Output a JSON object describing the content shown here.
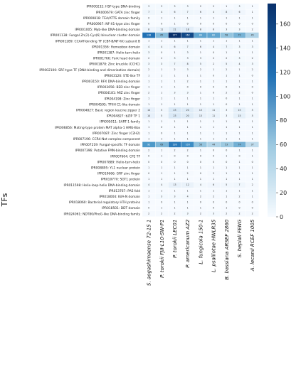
{
  "chart_data": {
    "type": "heatmap",
    "ylabel": "TFs",
    "xlabel": "",
    "columns": [
      "S. aogashimaense 72-15 1",
      "P. torokii FJII-L10-SW-P1",
      "P. torokii LEC01",
      "P. americanum AZ2",
      "L. fungicola 150-1",
      "L. psalliotae HWLR35",
      "B. bassiana ARSEF 2860",
      "S. hepiali FENG",
      "A. lecanii RCEF 1005"
    ],
    "rows": [
      "IPR000232: HSF-type DNA-binding",
      "IPR000679: GATA zinc finger",
      "IPR000818: TEA/ATTS domain family",
      "IPR000967: NF-X1-type zinc finger",
      "IPR001005: Myb-like DNA-binding domain",
      "IPR001138: Fungal Zn(2)-Cys(6) binuclear cluster domain",
      "IPR001289: CCAAT-binding TF (CBF-B/NF-YA) subunit B",
      "IPR001356: Homeobox domain",
      "IPR001387: Helix-turn-helix",
      "IPR001766: Fork head domain",
      "IPR001878: Zinc knuckle (CCHC)",
      "IPR002100: SRF-type TF (DNA-binding and dimerization domain)",
      "IPR003120: STE-like TF",
      "IPR003150: RFX DNA-binding domain",
      "IPR003656: BED zinc finger",
      "IPR004181: MIZ zinc finger",
      "IPR004198: Zinc finger",
      "IPR004595: TFIIH C1-like domain",
      "IPR004827: Basic region leucine zipper 2",
      "IPR004827: bZIP TF 1",
      "IPR005011: SART-1 family",
      "IPR006856: Mating-type protein MAT alpha-1 HMG-Box",
      "IPR007087: Zinc finger (C2H2)",
      "IPR007196: CCR4-Not complex component",
      "IPR007219: Fungal-specific TF domain",
      "IPR007396: Putative FMN-binding domain",
      "IPR007604: CP2 TF",
      "IPR007889: Helix-turn-helix",
      "IPR008895: YL1 nuclear protein",
      "IPR010666: GRF zinc finger",
      "IPR010770: SGT1 protein",
      "IPR011598: Helix-loop-helix DNA-binding domain",
      "IPR013767: PAS fold",
      "IPR018004: KilA-N domain",
      "IPR018060: Bacterial regulatory HTH proteins",
      "IPR018501: DDT domain",
      "IPR024061: NDT80/PhoG-like DNA-binding family"
    ],
    "values": [
      [
        3,
        3,
        3,
        3,
        2,
        2,
        1,
        3,
        1
      ],
      [
        7,
        4,
        6,
        7,
        6,
        4,
        8,
        6,
        1
      ],
      [
        0,
        1,
        1,
        1,
        1,
        1,
        1,
        1,
        1
      ],
      [
        0,
        0,
        1,
        0,
        0,
        0,
        0,
        0,
        0
      ],
      [
        8,
        11,
        21,
        18,
        8,
        6,
        3,
        3,
        2
      ],
      [
        138,
        65,
        177,
        162,
        84,
        82,
        58,
        72,
        45
      ],
      [
        1,
        1,
        1,
        1,
        1,
        1,
        1,
        1,
        1
      ],
      [
        4,
        4,
        6,
        7,
        6,
        4,
        7,
        3,
        3
      ],
      [
        3,
        0,
        1,
        3,
        1,
        0,
        1,
        1,
        1
      ],
      [
        2,
        2,
        3,
        3,
        3,
        2,
        2,
        3,
        2
      ],
      [
        3,
        3,
        7,
        8,
        5,
        2,
        5,
        4,
        3
      ],
      [
        2,
        1,
        2,
        3,
        2,
        1,
        2,
        1,
        2
      ],
      [
        1,
        1,
        1,
        1,
        1,
        0,
        1,
        1,
        0
      ],
      [
        1,
        1,
        1,
        2,
        1,
        1,
        1,
        1,
        1
      ],
      [
        1,
        1,
        1,
        0,
        0,
        0,
        0,
        1,
        0
      ],
      [
        2,
        1,
        3,
        3,
        1,
        0,
        2,
        2,
        0
      ],
      [
        1,
        1,
        1,
        1,
        1,
        1,
        0,
        1,
        1
      ],
      [
        1,
        1,
        1,
        1,
        1,
        1,
        0,
        1,
        1
      ],
      [
        14,
        5,
        23,
        20,
        13,
        11,
        3,
        15,
        5
      ],
      [
        14,
        5,
        23,
        20,
        13,
        11,
        3,
        15,
        5
      ],
      [
        1,
        1,
        1,
        1,
        1,
        1,
        1,
        1,
        1
      ],
      [
        1,
        0,
        1,
        1,
        1,
        1,
        1,
        1,
        1
      ],
      [
        1,
        0,
        1,
        1,
        1,
        1,
        1,
        1,
        1
      ],
      [
        1,
        1,
        1,
        1,
        1,
        1,
        1,
        1,
        1
      ],
      [
        92,
        69,
        126,
        103,
        58,
        44,
        53,
        74,
        37
      ],
      [
        2,
        1,
        2,
        2,
        1,
        0,
        0,
        1,
        1
      ],
      [
        0,
        1,
        0,
        0,
        0,
        0,
        1,
        0,
        1
      ],
      [
        0,
        0,
        0,
        0,
        0,
        0,
        0,
        1,
        0
      ],
      [
        1,
        1,
        1,
        1,
        1,
        1,
        1,
        1,
        1
      ],
      [
        0,
        1,
        1,
        2,
        0,
        2,
        1,
        1,
        1
      ],
      [
        1,
        1,
        1,
        1,
        1,
        1,
        1,
        1,
        1
      ],
      [
        4,
        4,
        13,
        12,
        4,
        6,
        5,
        7,
        2
      ],
      [
        1,
        1,
        1,
        1,
        1,
        1,
        1,
        1,
        1
      ],
      [
        1,
        3,
        3,
        4,
        2,
        2,
        1,
        2,
        1
      ],
      [
        1,
        0,
        1,
        1,
        0,
        0,
        0,
        0,
        0
      ],
      [
        0,
        1,
        1,
        1,
        1,
        0,
        1,
        0,
        0
      ],
      [
        2,
        2,
        2,
        3,
        2,
        3,
        2,
        2,
        2
      ]
    ],
    "colorbar": {
      "min": 0,
      "max": 177,
      "ticks": [
        0,
        20,
        40,
        60,
        80,
        100,
        120,
        140,
        160
      ],
      "low_color": "#f7fbff",
      "high_color": "#08306b"
    }
  }
}
